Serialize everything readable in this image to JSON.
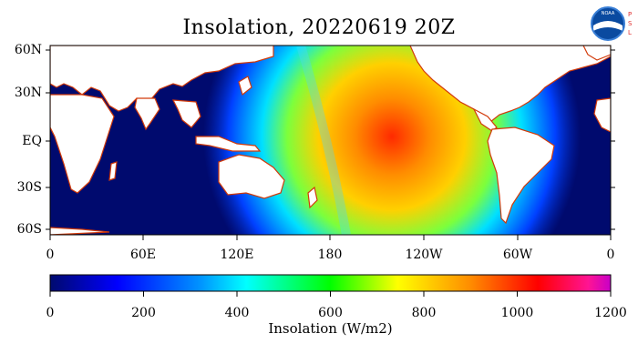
{
  "title": "Insolation, 20220619 20Z",
  "logo": {
    "name": "noaa-psl-logo",
    "text": "NOAA",
    "side_letters": [
      "P",
      "S",
      "L"
    ]
  },
  "map": {
    "lat_labels": [
      "60N",
      "30N",
      "EQ",
      "30S",
      "60S"
    ],
    "lon_labels": [
      "0",
      "60E",
      "120E",
      "180",
      "120W",
      "60W",
      "0"
    ],
    "colors": {
      "ocean_night": "#000a6e",
      "land": "#ffffff",
      "coast": "#d23a0a"
    }
  },
  "colorbar": {
    "ticks": [
      "0",
      "200",
      "400",
      "600",
      "800",
      "1000",
      "1200"
    ],
    "label": "Insolation (W/m2)",
    "range": [
      0,
      1200
    ],
    "colors": [
      "#000a6e",
      "#0000ff",
      "#0096ff",
      "#00ffff",
      "#00ff00",
      "#ffff00",
      "#ff8c00",
      "#ff0000",
      "#ff1493",
      "#c800c8"
    ]
  }
}
